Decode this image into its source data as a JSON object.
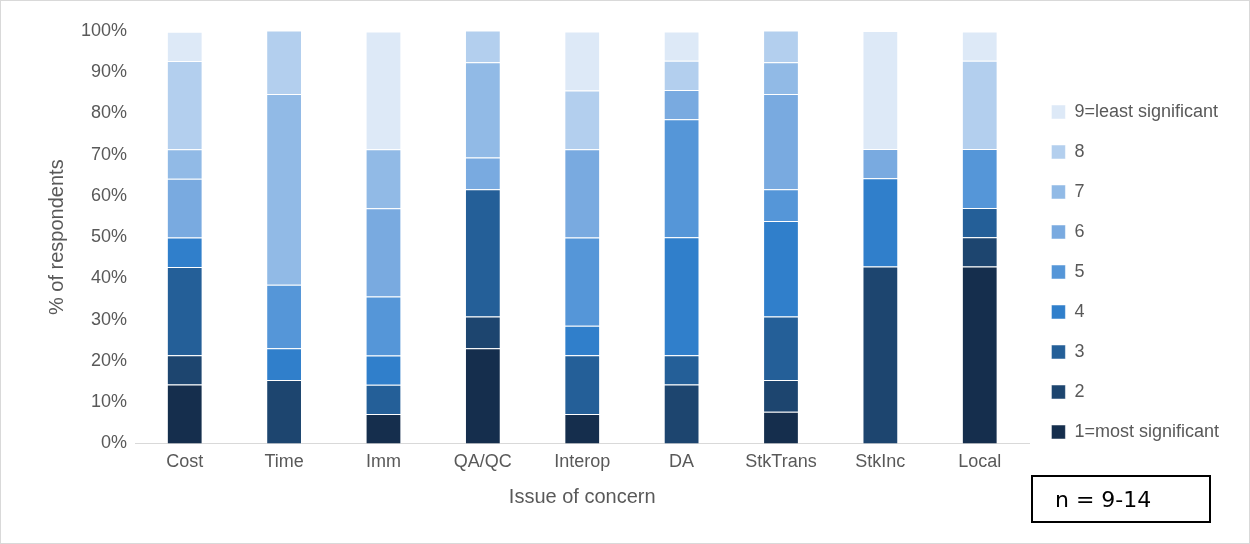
{
  "chart_data": {
    "type": "bar",
    "stacked": true,
    "xlabel": "Issue of concern",
    "ylabel": "% of respondents",
    "categories": [
      "Cost",
      "Time",
      "Imm",
      "QA/QC",
      "Interop",
      "DA",
      "StkTrans",
      "StkInc",
      "Local"
    ],
    "series": [
      {
        "name": "1=most significant",
        "color": "#152e4d",
        "values": [
          14.3,
          0,
          7.1,
          23.1,
          7.1,
          0,
          7.7,
          0,
          42.9
        ]
      },
      {
        "name": "2",
        "color": "#1d456f",
        "values": [
          7.1,
          15.4,
          0,
          7.7,
          0,
          14.3,
          7.7,
          42.9,
          7.1
        ]
      },
      {
        "name": "3",
        "color": "#245f98",
        "values": [
          21.4,
          0,
          7.1,
          30.8,
          14.3,
          7.1,
          15.4,
          0,
          7.1
        ]
      },
      {
        "name": "4",
        "color": "#307fcb",
        "values": [
          7.1,
          7.7,
          7.1,
          0,
          7.1,
          28.6,
          23.1,
          21.4,
          0
        ]
      },
      {
        "name": "5",
        "color": "#5596d8",
        "values": [
          0,
          15.4,
          14.3,
          0,
          21.4,
          28.6,
          7.7,
          0,
          14.3
        ]
      },
      {
        "name": "6",
        "color": "#79aae0",
        "values": [
          14.3,
          0,
          21.4,
          7.7,
          21.4,
          7.1,
          23.1,
          7.1,
          0
        ]
      },
      {
        "name": "7",
        "color": "#91bae6",
        "values": [
          7.1,
          46.2,
          14.3,
          23.1,
          0,
          0,
          7.7,
          0,
          0
        ]
      },
      {
        "name": "8",
        "color": "#b3cfee",
        "values": [
          21.4,
          15.4,
          0,
          7.7,
          14.3,
          7.1,
          7.7,
          0,
          21.4
        ]
      },
      {
        "name": "9=least significant",
        "color": "#dde9f7",
        "values": [
          7.1,
          0,
          28.6,
          0,
          14.3,
          7.1,
          0,
          28.6,
          7.1
        ]
      }
    ],
    "ylim": [
      0,
      100
    ],
    "yticks": [
      {
        "value": 0,
        "label": "0%"
      },
      {
        "value": 10,
        "label": "10%"
      },
      {
        "value": 20,
        "label": "20%"
      },
      {
        "value": 30,
        "label": "30%"
      },
      {
        "value": 40,
        "label": "40%"
      },
      {
        "value": 50,
        "label": "50%"
      },
      {
        "value": 60,
        "label": "60%"
      },
      {
        "value": 70,
        "label": "70%"
      },
      {
        "value": 80,
        "label": "80%"
      },
      {
        "value": 90,
        "label": "90%"
      },
      {
        "value": 100,
        "label": "100%"
      }
    ],
    "grid": false,
    "legend": "right",
    "annotations": [
      "n = 9-14"
    ]
  }
}
